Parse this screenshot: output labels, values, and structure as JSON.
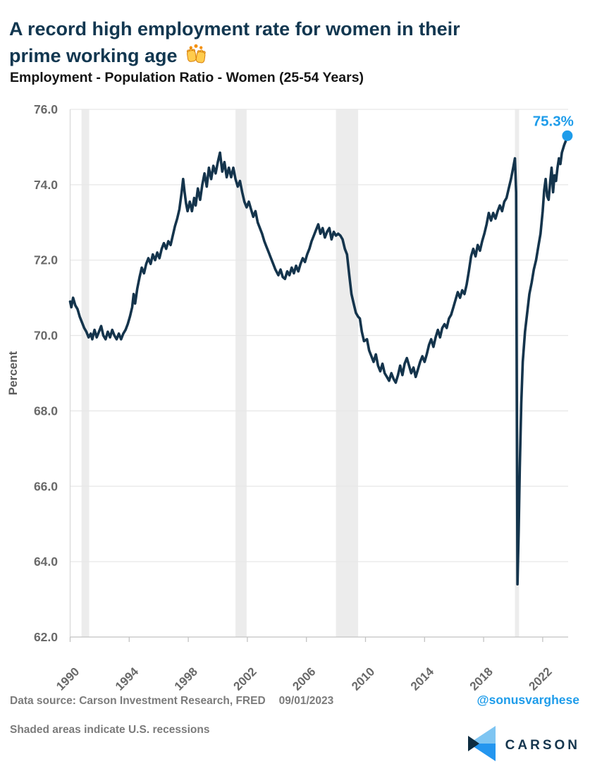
{
  "header": {
    "title_line1": "A record high employment rate for women in their",
    "title_line2": "prime working age",
    "title_emoji": "🙌",
    "subtitle": "Employment - Population Ratio - Women (25-54 Years)"
  },
  "chart_data": {
    "type": "line",
    "title": "Employment - Population Ratio - Women (25-54 Years)",
    "xlabel": "",
    "ylabel": "Percent",
    "ylim": [
      62.0,
      76.0
    ],
    "ytick_labels": [
      "62.0",
      "64.0",
      "66.0",
      "68.0",
      "70.0",
      "72.0",
      "74.0",
      "76.0"
    ],
    "xlim": [
      1990,
      2023.9
    ],
    "xticks": [
      1990,
      1994,
      1998,
      2002,
      2006,
      2010,
      2014,
      2018,
      2022
    ],
    "grid": true,
    "legend_position": "none",
    "annotation": {
      "text": "75.3%",
      "x": 2023.67,
      "y": 75.3
    },
    "recession_bands": [
      [
        1990.77,
        1991.29
      ],
      [
        2001.2,
        2001.95
      ],
      [
        2008.0,
        2009.5
      ],
      [
        2020.12,
        2020.4
      ]
    ],
    "series": [
      {
        "name": "Employment-Population Ratio, Women 25-54 Years",
        "points": [
          [
            1990.0,
            70.9
          ],
          [
            1990.08,
            70.75
          ],
          [
            1990.2,
            71.0
          ],
          [
            1990.35,
            70.8
          ],
          [
            1990.5,
            70.7
          ],
          [
            1990.65,
            70.5
          ],
          [
            1990.8,
            70.35
          ],
          [
            1990.95,
            70.2
          ],
          [
            1991.1,
            70.1
          ],
          [
            1991.25,
            69.95
          ],
          [
            1991.4,
            70.05
          ],
          [
            1991.5,
            69.9
          ],
          [
            1991.65,
            70.15
          ],
          [
            1991.8,
            69.95
          ],
          [
            1991.95,
            70.1
          ],
          [
            1992.1,
            70.25
          ],
          [
            1992.25,
            70.0
          ],
          [
            1992.4,
            69.9
          ],
          [
            1992.55,
            70.1
          ],
          [
            1992.7,
            69.95
          ],
          [
            1992.85,
            70.15
          ],
          [
            1993.0,
            70.0
          ],
          [
            1993.15,
            69.9
          ],
          [
            1993.3,
            70.05
          ],
          [
            1993.45,
            69.9
          ],
          [
            1993.6,
            70.05
          ],
          [
            1993.75,
            70.15
          ],
          [
            1993.9,
            70.3
          ],
          [
            1994.05,
            70.5
          ],
          [
            1994.2,
            70.75
          ],
          [
            1994.3,
            71.1
          ],
          [
            1994.4,
            70.85
          ],
          [
            1994.55,
            71.25
          ],
          [
            1994.7,
            71.55
          ],
          [
            1994.85,
            71.8
          ],
          [
            1995.0,
            71.65
          ],
          [
            1995.15,
            71.9
          ],
          [
            1995.3,
            72.05
          ],
          [
            1995.45,
            71.9
          ],
          [
            1995.6,
            72.15
          ],
          [
            1995.75,
            72.0
          ],
          [
            1995.9,
            72.2
          ],
          [
            1996.05,
            72.05
          ],
          [
            1996.2,
            72.3
          ],
          [
            1996.35,
            72.45
          ],
          [
            1996.5,
            72.3
          ],
          [
            1996.65,
            72.5
          ],
          [
            1996.8,
            72.4
          ],
          [
            1996.95,
            72.65
          ],
          [
            1997.1,
            72.9
          ],
          [
            1997.25,
            73.1
          ],
          [
            1997.4,
            73.35
          ],
          [
            1997.55,
            73.8
          ],
          [
            1997.65,
            74.15
          ],
          [
            1997.75,
            73.8
          ],
          [
            1997.85,
            73.5
          ],
          [
            1997.95,
            73.3
          ],
          [
            1998.1,
            73.55
          ],
          [
            1998.25,
            73.3
          ],
          [
            1998.4,
            73.65
          ],
          [
            1998.5,
            73.45
          ],
          [
            1998.65,
            73.9
          ],
          [
            1998.8,
            73.6
          ],
          [
            1998.95,
            74.0
          ],
          [
            1999.1,
            74.3
          ],
          [
            1999.25,
            73.95
          ],
          [
            1999.4,
            74.45
          ],
          [
            1999.55,
            74.15
          ],
          [
            1999.7,
            74.5
          ],
          [
            1999.85,
            74.3
          ],
          [
            2000.0,
            74.6
          ],
          [
            2000.15,
            74.85
          ],
          [
            2000.3,
            74.35
          ],
          [
            2000.45,
            74.6
          ],
          [
            2000.6,
            74.2
          ],
          [
            2000.75,
            74.45
          ],
          [
            2000.9,
            74.2
          ],
          [
            2001.05,
            74.45
          ],
          [
            2001.2,
            74.15
          ],
          [
            2001.35,
            73.95
          ],
          [
            2001.5,
            74.1
          ],
          [
            2001.65,
            73.8
          ],
          [
            2001.8,
            73.55
          ],
          [
            2001.95,
            73.4
          ],
          [
            2002.1,
            73.55
          ],
          [
            2002.25,
            73.35
          ],
          [
            2002.4,
            73.15
          ],
          [
            2002.55,
            73.3
          ],
          [
            2002.7,
            73.0
          ],
          [
            2002.85,
            72.85
          ],
          [
            2003.0,
            72.7
          ],
          [
            2003.15,
            72.5
          ],
          [
            2003.3,
            72.35
          ],
          [
            2003.45,
            72.2
          ],
          [
            2003.6,
            72.05
          ],
          [
            2003.75,
            71.9
          ],
          [
            2003.9,
            71.75
          ],
          [
            2004.1,
            71.6
          ],
          [
            2004.25,
            71.75
          ],
          [
            2004.4,
            71.55
          ],
          [
            2004.55,
            71.5
          ],
          [
            2004.7,
            71.7
          ],
          [
            2004.85,
            71.6
          ],
          [
            2005.0,
            71.8
          ],
          [
            2005.15,
            71.65
          ],
          [
            2005.3,
            71.85
          ],
          [
            2005.45,
            71.7
          ],
          [
            2005.6,
            71.9
          ],
          [
            2005.75,
            72.05
          ],
          [
            2005.9,
            71.95
          ],
          [
            2006.05,
            72.15
          ],
          [
            2006.2,
            72.3
          ],
          [
            2006.35,
            72.5
          ],
          [
            2006.5,
            72.65
          ],
          [
            2006.65,
            72.8
          ],
          [
            2006.8,
            72.95
          ],
          [
            2006.95,
            72.7
          ],
          [
            2007.1,
            72.85
          ],
          [
            2007.25,
            72.6
          ],
          [
            2007.4,
            72.75
          ],
          [
            2007.55,
            72.85
          ],
          [
            2007.7,
            72.55
          ],
          [
            2007.85,
            72.75
          ],
          [
            2008.0,
            72.65
          ],
          [
            2008.15,
            72.7
          ],
          [
            2008.3,
            72.65
          ],
          [
            2008.45,
            72.55
          ],
          [
            2008.6,
            72.3
          ],
          [
            2008.75,
            72.15
          ],
          [
            2008.9,
            71.6
          ],
          [
            2009.05,
            71.1
          ],
          [
            2009.2,
            70.85
          ],
          [
            2009.35,
            70.6
          ],
          [
            2009.5,
            70.5
          ],
          [
            2009.62,
            70.45
          ],
          [
            2009.75,
            70.1
          ],
          [
            2009.9,
            69.85
          ],
          [
            2010.1,
            69.9
          ],
          [
            2010.25,
            69.6
          ],
          [
            2010.4,
            69.45
          ],
          [
            2010.55,
            69.3
          ],
          [
            2010.7,
            69.5
          ],
          [
            2010.85,
            69.2
          ],
          [
            2011.0,
            69.05
          ],
          [
            2011.15,
            69.25
          ],
          [
            2011.3,
            69.0
          ],
          [
            2011.45,
            68.9
          ],
          [
            2011.6,
            68.8
          ],
          [
            2011.75,
            69.0
          ],
          [
            2011.9,
            68.85
          ],
          [
            2012.05,
            68.75
          ],
          [
            2012.2,
            68.95
          ],
          [
            2012.35,
            69.2
          ],
          [
            2012.5,
            68.95
          ],
          [
            2012.65,
            69.25
          ],
          [
            2012.8,
            69.4
          ],
          [
            2012.95,
            69.2
          ],
          [
            2013.1,
            69.0
          ],
          [
            2013.25,
            69.15
          ],
          [
            2013.4,
            68.9
          ],
          [
            2013.55,
            69.1
          ],
          [
            2013.7,
            69.3
          ],
          [
            2013.85,
            69.45
          ],
          [
            2014.0,
            69.3
          ],
          [
            2014.15,
            69.5
          ],
          [
            2014.3,
            69.75
          ],
          [
            2014.45,
            69.9
          ],
          [
            2014.6,
            69.7
          ],
          [
            2014.75,
            69.95
          ],
          [
            2014.9,
            70.15
          ],
          [
            2015.05,
            69.95
          ],
          [
            2015.2,
            70.2
          ],
          [
            2015.35,
            70.3
          ],
          [
            2015.5,
            70.2
          ],
          [
            2015.65,
            70.45
          ],
          [
            2015.8,
            70.55
          ],
          [
            2015.95,
            70.75
          ],
          [
            2016.1,
            70.95
          ],
          [
            2016.25,
            71.15
          ],
          [
            2016.4,
            71.0
          ],
          [
            2016.55,
            71.2
          ],
          [
            2016.7,
            71.1
          ],
          [
            2016.85,
            71.35
          ],
          [
            2017.0,
            71.7
          ],
          [
            2017.15,
            72.1
          ],
          [
            2017.3,
            72.3
          ],
          [
            2017.45,
            72.1
          ],
          [
            2017.6,
            72.4
          ],
          [
            2017.75,
            72.25
          ],
          [
            2017.9,
            72.5
          ],
          [
            2018.05,
            72.7
          ],
          [
            2018.2,
            72.95
          ],
          [
            2018.35,
            73.25
          ],
          [
            2018.5,
            73.05
          ],
          [
            2018.65,
            73.25
          ],
          [
            2018.8,
            73.1
          ],
          [
            2018.95,
            73.3
          ],
          [
            2019.1,
            73.45
          ],
          [
            2019.25,
            73.3
          ],
          [
            2019.4,
            73.55
          ],
          [
            2019.55,
            73.65
          ],
          [
            2019.7,
            73.9
          ],
          [
            2019.85,
            74.15
          ],
          [
            2020.0,
            74.45
          ],
          [
            2020.12,
            74.7
          ],
          [
            2020.2,
            73.8
          ],
          [
            2020.29,
            63.4
          ],
          [
            2020.37,
            64.8
          ],
          [
            2020.45,
            66.5
          ],
          [
            2020.55,
            68.2
          ],
          [
            2020.65,
            69.3
          ],
          [
            2020.8,
            70.1
          ],
          [
            2020.95,
            70.6
          ],
          [
            2021.1,
            71.1
          ],
          [
            2021.25,
            71.4
          ],
          [
            2021.4,
            71.75
          ],
          [
            2021.55,
            72.0
          ],
          [
            2021.7,
            72.35
          ],
          [
            2021.85,
            72.7
          ],
          [
            2022.0,
            73.3
          ],
          [
            2022.1,
            73.85
          ],
          [
            2022.2,
            74.15
          ],
          [
            2022.3,
            73.7
          ],
          [
            2022.4,
            73.6
          ],
          [
            2022.5,
            74.05
          ],
          [
            2022.6,
            74.45
          ],
          [
            2022.7,
            73.8
          ],
          [
            2022.8,
            74.25
          ],
          [
            2022.9,
            74.1
          ],
          [
            2023.0,
            74.45
          ],
          [
            2023.1,
            74.7
          ],
          [
            2023.2,
            74.55
          ],
          [
            2023.3,
            74.85
          ],
          [
            2023.45,
            75.05
          ],
          [
            2023.55,
            75.15
          ],
          [
            2023.67,
            75.3
          ]
        ]
      }
    ]
  },
  "footer": {
    "source": "Data source: Carson Investment Research, FRED",
    "as_of_date": "09/01/2023",
    "handle": "@sonusvarghese",
    "note": "Shaded areas indicate U.S. recessions",
    "brand": "CARSON"
  },
  "colors": {
    "title_navy": "#123750",
    "line_navy": "#14344C",
    "accent_blue": "#1e9cea",
    "recession_band": "#ececec",
    "gridline": "#e7e7e7",
    "axis": "#c2c2c2",
    "tick_text": "#696969",
    "footer_text": "#7b7b7b"
  }
}
